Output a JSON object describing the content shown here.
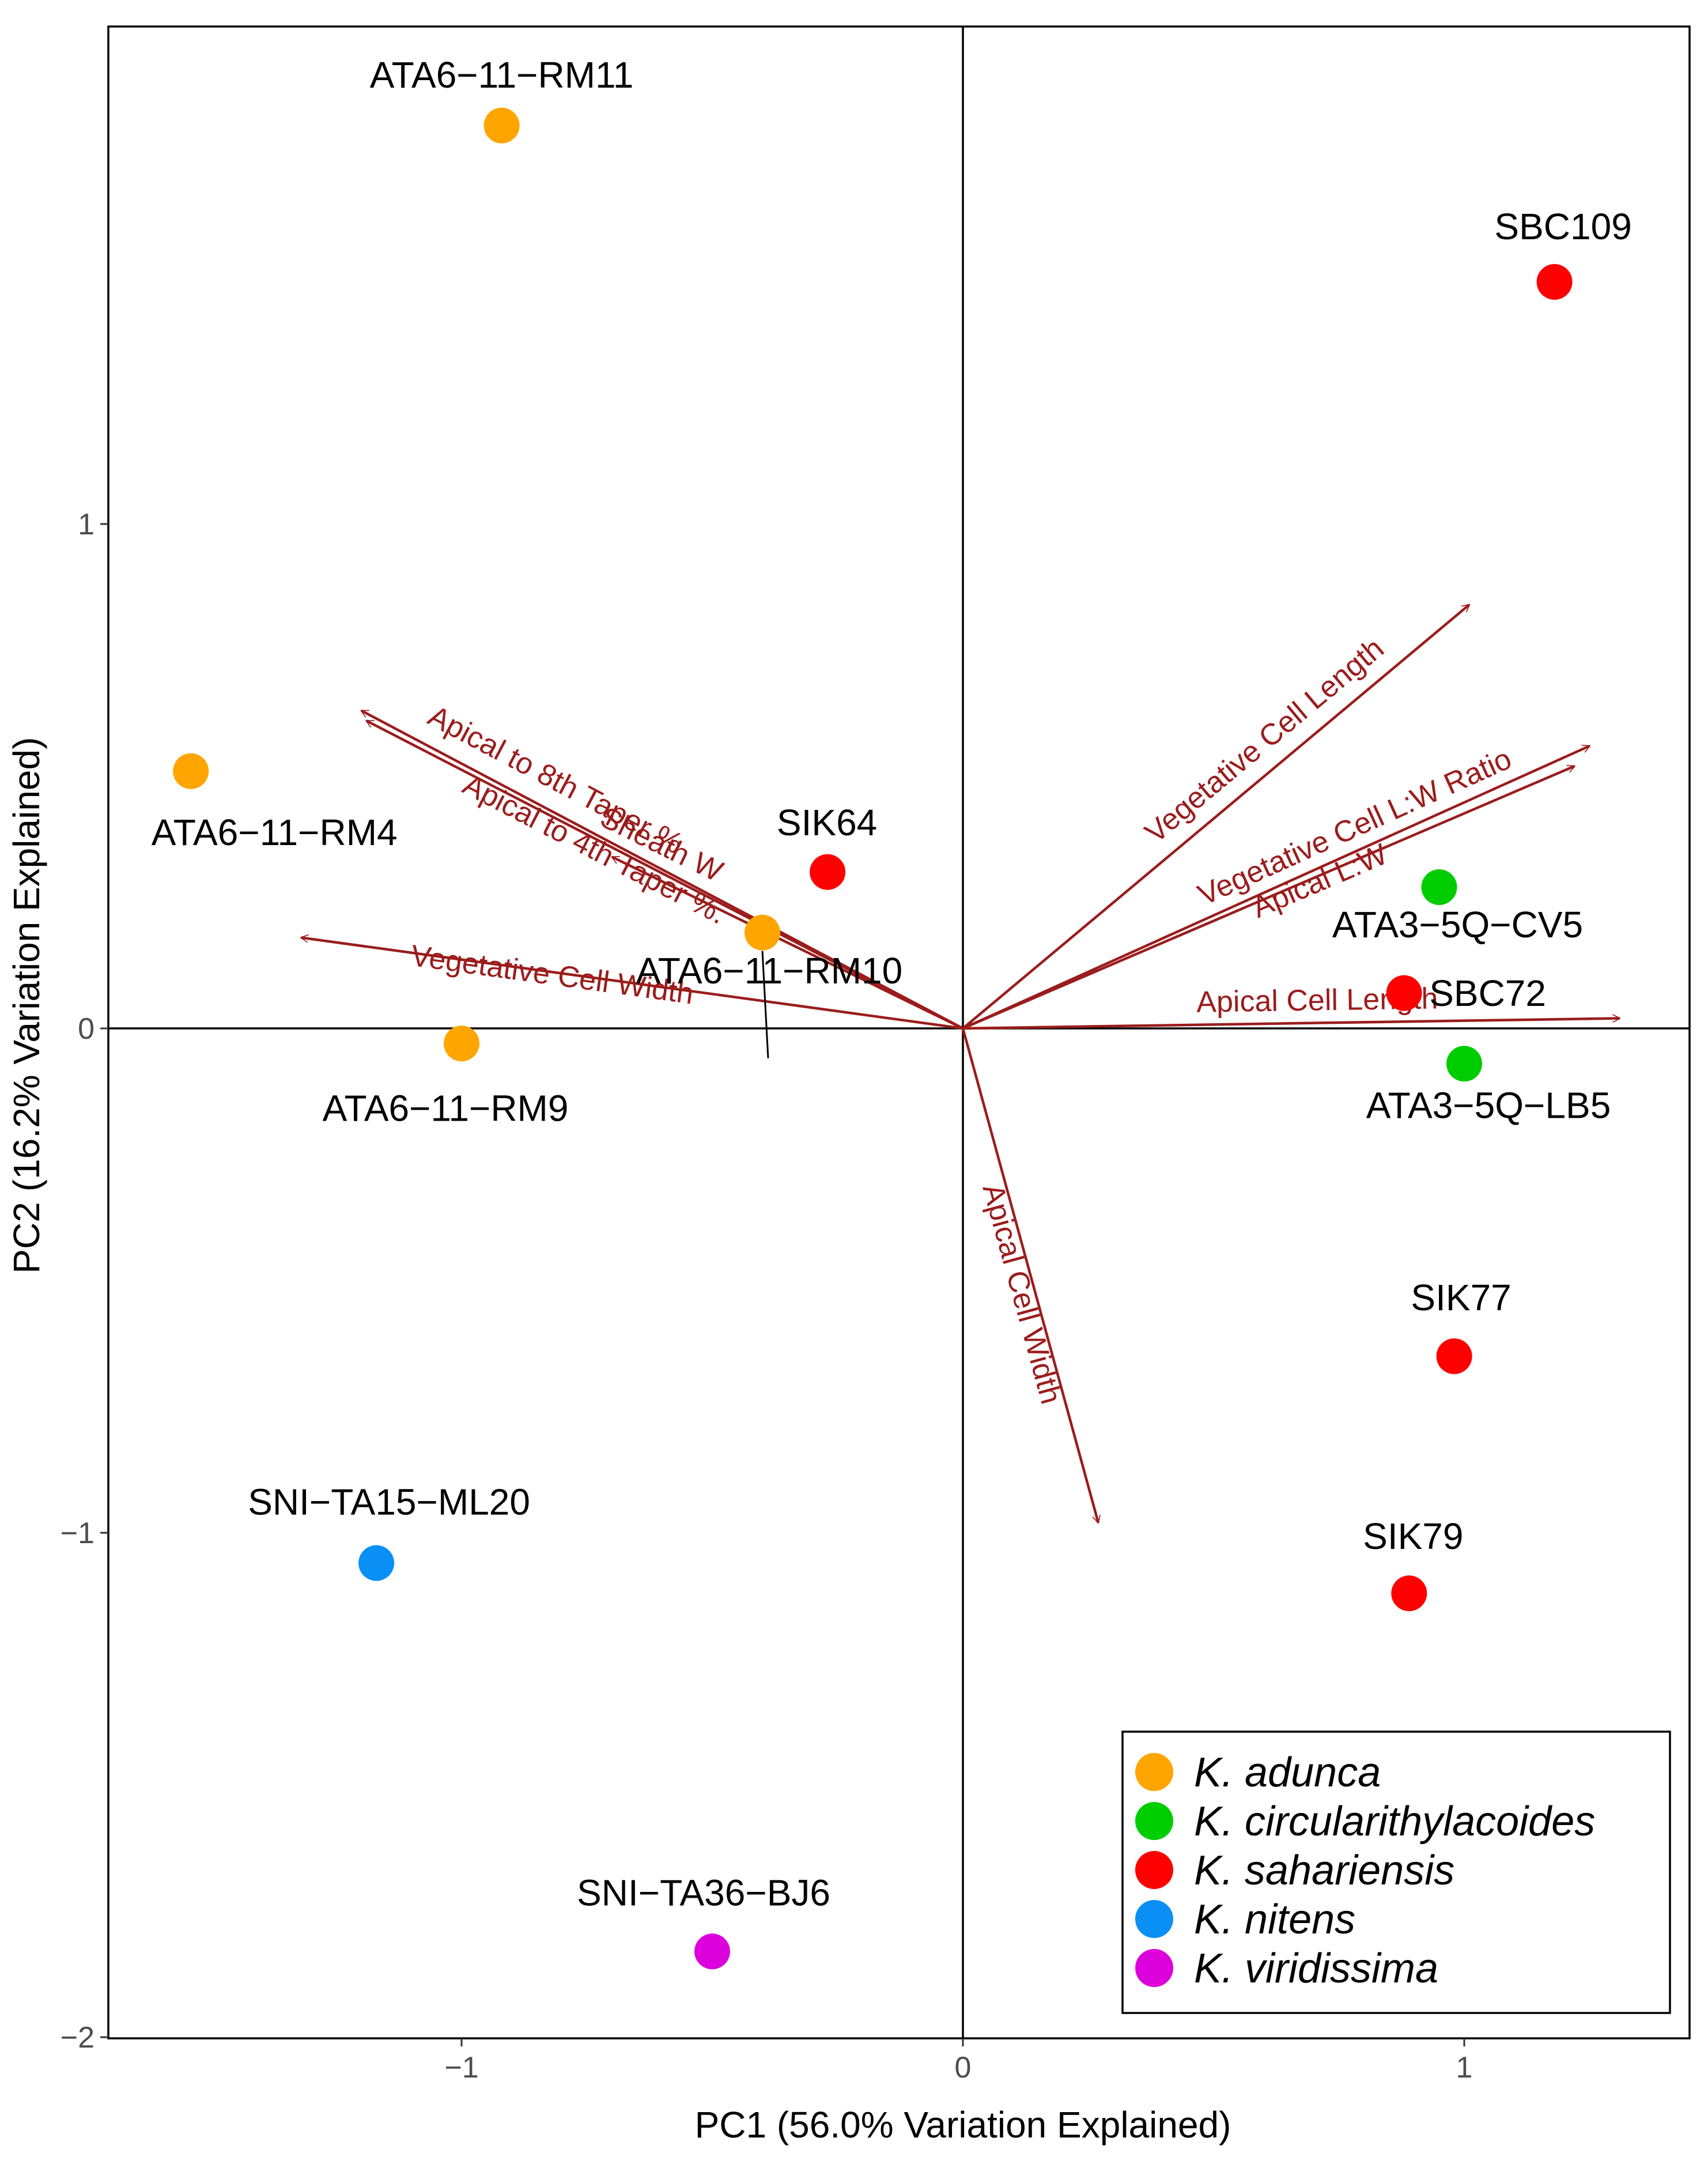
{
  "chart_data": {
    "type": "scatter",
    "subtype": "pca-biplot",
    "xlabel": "PC1 (56.0% Variation Explained)",
    "ylabel": "PC2 (16.2% Variation Explained)",
    "xlim": [
      -1.7,
      1.45
    ],
    "ylim": [
      -2.0,
      1.97
    ],
    "xticks": [
      {
        "value": -1,
        "label": "−1"
      },
      {
        "value": 0,
        "label": "0"
      },
      {
        "value": 1,
        "label": "1"
      }
    ],
    "yticks": [
      {
        "value": -2,
        "label": "−2"
      },
      {
        "value": -1,
        "label": "−1"
      },
      {
        "value": 0,
        "label": "0"
      },
      {
        "value": 1,
        "label": "1"
      }
    ],
    "zero_lines": true,
    "grid": false,
    "legend_position": "bottom-right",
    "species": [
      {
        "name": "K. adunca",
        "color": "#FFA500"
      },
      {
        "name": "K. circularithylacoides",
        "color": "#00CD00"
      },
      {
        "name": "K. sahariensis",
        "color": "#FF0000"
      },
      {
        "name": "K. nitens",
        "color": "#0A8FF5"
      },
      {
        "name": "K. viridissima",
        "color": "#DC00DC"
      }
    ],
    "points": [
      {
        "label": "ATA6−11−RM11",
        "species": "K. adunca",
        "x": -0.92,
        "y": 1.79
      },
      {
        "label": "ATA6−11−RM4",
        "species": "K. adunca",
        "x": -1.54,
        "y": 0.51
      },
      {
        "label": "ATA6−11−RM10",
        "species": "K. adunca",
        "x": -0.4,
        "y": 0.19
      },
      {
        "label": "ATA6−11−RM9",
        "species": "K. adunca",
        "x": -1.0,
        "y": -0.03
      },
      {
        "label": "SIK64",
        "species": "K. sahariensis",
        "x": -0.27,
        "y": 0.31
      },
      {
        "label": "SBC109",
        "species": "K. sahariensis",
        "x": 1.18,
        "y": 1.48
      },
      {
        "label": "SBC72",
        "species": "K. sahariensis",
        "x": 0.88,
        "y": 0.07
      },
      {
        "label": "SIK77",
        "species": "K. sahariensis",
        "x": 0.98,
        "y": -0.65
      },
      {
        "label": "SIK79",
        "species": "K. sahariensis",
        "x": 0.89,
        "y": -1.12
      },
      {
        "label": "ATA3−5Q−CV5",
        "species": "K. circularithylacoides",
        "x": 0.95,
        "y": 0.28
      },
      {
        "label": "ATA3−5Q−LB5",
        "species": "K. circularithylacoides",
        "x": 1.0,
        "y": -0.07
      },
      {
        "label": "SNI−TA15−ML20",
        "species": "K. nitens",
        "x": -1.17,
        "y": -1.06
      },
      {
        "label": "SNI−TA36−BJ6",
        "species": "K. viridissima",
        "x": -0.5,
        "y": -1.83
      }
    ],
    "loadings": [
      {
        "label": "Apical to 8th Taper %",
        "x": -1.2,
        "y": 0.63
      },
      {
        "label": "Apical to 4th Taper %.",
        "x": -1.19,
        "y": 0.61
      },
      {
        "label": "Sheath W",
        "x": -0.7,
        "y": 0.34
      },
      {
        "label": "Vegetative Cell Width",
        "x": -1.32,
        "y": 0.18
      },
      {
        "label": "Vegetative Cell Length",
        "x": 1.01,
        "y": 0.84
      },
      {
        "label": "Vegetative Cell L:W Ratio",
        "x": 1.25,
        "y": 0.56
      },
      {
        "label": "Apical L:W",
        "x": 1.22,
        "y": 0.52
      },
      {
        "label": "Apical Cell Length",
        "x": 1.31,
        "y": 0.02
      },
      {
        "label": "Apical Cell Width",
        "x": 0.27,
        "y": -0.98
      }
    ],
    "loading_color": "#9B1C1C"
  }
}
